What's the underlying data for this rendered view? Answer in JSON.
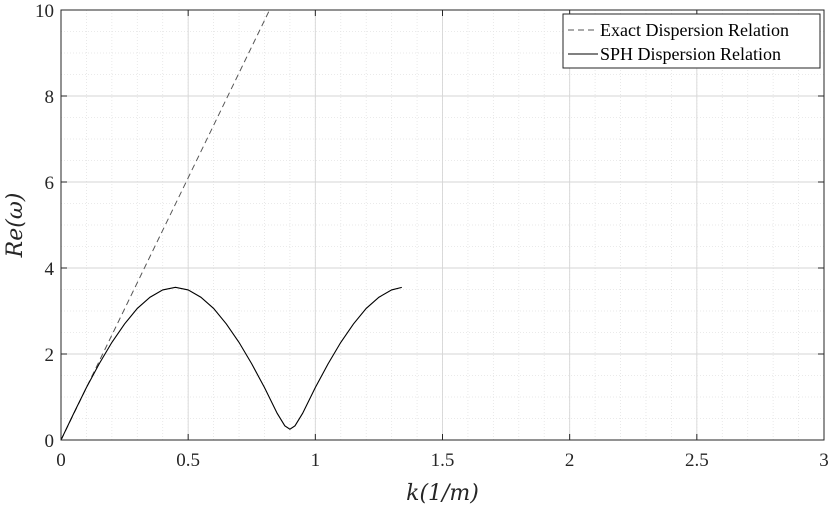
{
  "chart_data": {
    "type": "line",
    "title": "",
    "xlabel": "k(1/m)",
    "ylabel": "Re(ω)",
    "xlim": [
      0,
      3
    ],
    "ylim": [
      0,
      10
    ],
    "xticks": [
      0,
      0.5,
      1,
      1.5,
      2,
      2.5,
      3
    ],
    "yticks": [
      0,
      2,
      4,
      6,
      8,
      10
    ],
    "xtick_labels": [
      "0",
      "0.5",
      "1",
      "1.5",
      "2",
      "2.5",
      "3"
    ],
    "ytick_labels": [
      "0",
      "2",
      "4",
      "6",
      "8",
      "10"
    ],
    "grid": true,
    "minor_grid": true,
    "legend_position": "top-right",
    "series": [
      {
        "name": "Exact Dispersion Relation",
        "style": "dashed",
        "color": "#555555",
        "x": [
          0,
          0.82
        ],
        "y": [
          0,
          10
        ]
      },
      {
        "name": "SPH Dispersion Relation",
        "style": "solid",
        "color": "#000000",
        "x": [
          0,
          0.05,
          0.1,
          0.15,
          0.2,
          0.25,
          0.3,
          0.35,
          0.4,
          0.45,
          0.5,
          0.55,
          0.6,
          0.65,
          0.7,
          0.75,
          0.8,
          0.85,
          0.88,
          0.9,
          0.92,
          0.95,
          1.0,
          1.05,
          1.1,
          1.15,
          1.2,
          1.25,
          1.3,
          1.34
        ],
        "y": [
          0,
          0.62,
          1.22,
          1.77,
          2.27,
          2.7,
          3.06,
          3.32,
          3.49,
          3.55,
          3.49,
          3.32,
          3.06,
          2.7,
          2.27,
          1.77,
          1.22,
          0.62,
          0.33,
          0.25,
          0.33,
          0.62,
          1.22,
          1.77,
          2.27,
          2.7,
          3.06,
          3.32,
          3.49,
          3.55
        ]
      }
    ]
  }
}
